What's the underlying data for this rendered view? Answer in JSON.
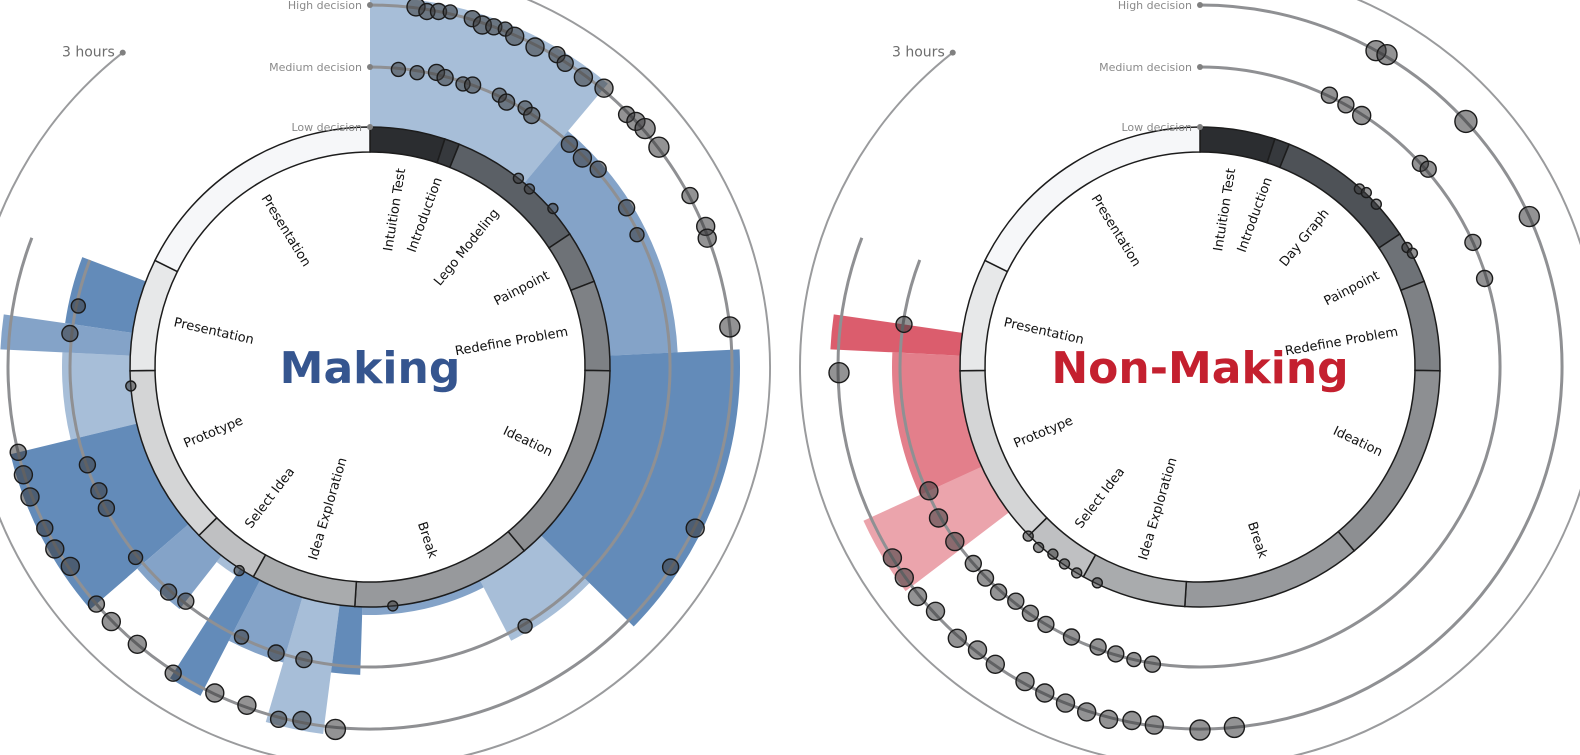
{
  "chart_data": [
    {
      "type": "radial",
      "title": "Making",
      "title_color": "#35558f",
      "accent_color": "#3c6ea8",
      "time_label": "3 hours",
      "levels": [
        "Low decision",
        "Medium decision",
        "High decision"
      ],
      "phases": [
        {
          "label": "Intuition Test",
          "start": 0,
          "end": 10,
          "shade": "#2b2d30"
        },
        {
          "label": "Introduction",
          "start": 10,
          "end": 12,
          "shade": "#36393d"
        },
        {
          "label": "Lego Modeling",
          "start": 12,
          "end": 31,
          "shade": "#5b6066"
        },
        {
          "label": "Painpoint",
          "start": 31,
          "end": 38,
          "shade": "#6e7277"
        },
        {
          "label": "Redefine Problem",
          "start": 38,
          "end": 50,
          "shade": "#7e8185"
        },
        {
          "label": "Ideation",
          "start": 50,
          "end": 77,
          "shade": "#8d8f92"
        },
        {
          "label": "Break",
          "start": 77,
          "end": 101,
          "shade": "#97999c"
        },
        {
          "label": "Idea Exploration",
          "start": 101,
          "end": 115,
          "shade": "#a9abad"
        },
        {
          "label": "Select Idea",
          "start": 115,
          "end": 124,
          "shade": "#bfc0c2"
        },
        {
          "label": "Prototype",
          "start": 124,
          "end": 148,
          "shade": "#d4d5d6"
        },
        {
          "label": "Presentation",
          "start": 148,
          "end": 163,
          "shade": "#e7e8e9"
        },
        {
          "label": "Presentation",
          "start": 163,
          "end": 198,
          "shade": "#f6f7f9"
        }
      ],
      "decision_bands": [
        {
          "start": 0,
          "end": 22,
          "level": 3
        },
        {
          "start": 22,
          "end": 48,
          "level": 2
        },
        {
          "start": 48,
          "end": 74,
          "level": 3
        },
        {
          "start": 74,
          "end": 84,
          "level": 2
        },
        {
          "start": 84,
          "end": 100,
          "level": 1
        },
        {
          "start": 100,
          "end": 103,
          "level": 2
        },
        {
          "start": 103,
          "end": 108,
          "level": 3
        },
        {
          "start": 108,
          "end": 114,
          "level": 2
        },
        {
          "start": 114,
          "end": 117,
          "level": 3
        },
        {
          "start": 117,
          "end": 120,
          "level": 1
        },
        {
          "start": 120,
          "end": 126,
          "level": 2
        },
        {
          "start": 126,
          "end": 141,
          "level": 3
        },
        {
          "start": 141,
          "end": 150,
          "level": 2
        },
        {
          "start": 150,
          "end": 153,
          "level": 3
        },
        {
          "start": 153,
          "end": 160,
          "level": 2
        }
      ],
      "decision_points": [
        {
          "t": 4,
          "level": 3,
          "size": 9
        },
        {
          "t": 5,
          "level": 3,
          "size": 8
        },
        {
          "t": 6,
          "level": 3,
          "size": 8
        },
        {
          "t": 7,
          "level": 3,
          "size": 7
        },
        {
          "t": 9,
          "level": 3,
          "size": 8
        },
        {
          "t": 10,
          "level": 3,
          "size": 9
        },
        {
          "t": 11,
          "level": 3,
          "size": 8
        },
        {
          "t": 12,
          "level": 3,
          "size": 7
        },
        {
          "t": 13,
          "level": 3,
          "size": 9
        },
        {
          "t": 15,
          "level": 3,
          "size": 9
        },
        {
          "t": 17,
          "level": 3,
          "size": 8
        },
        {
          "t": 18,
          "level": 3,
          "size": 8
        },
        {
          "t": 20,
          "level": 3,
          "size": 9
        },
        {
          "t": 22,
          "level": 3,
          "size": 9
        },
        {
          "t": 25,
          "level": 3,
          "size": 8
        },
        {
          "t": 26,
          "level": 3,
          "size": 9
        },
        {
          "t": 27,
          "level": 3,
          "size": 10
        },
        {
          "t": 29,
          "level": 3,
          "size": 10
        },
        {
          "t": 34,
          "level": 3,
          "size": 8
        },
        {
          "t": 37,
          "level": 3,
          "size": 9
        },
        {
          "t": 38,
          "level": 3,
          "size": 9
        },
        {
          "t": 46,
          "level": 3,
          "size": 10
        },
        {
          "t": 64,
          "level": 3,
          "size": 9
        },
        {
          "t": 68,
          "level": 3,
          "size": 8
        },
        {
          "t": 3,
          "level": 2,
          "size": 7
        },
        {
          "t": 5,
          "level": 2,
          "size": 7
        },
        {
          "t": 7,
          "level": 2,
          "size": 8
        },
        {
          "t": 8,
          "level": 2,
          "size": 8
        },
        {
          "t": 10,
          "level": 2,
          "size": 7
        },
        {
          "t": 11,
          "level": 2,
          "size": 8
        },
        {
          "t": 14,
          "level": 2,
          "size": 7
        },
        {
          "t": 15,
          "level": 2,
          "size": 8
        },
        {
          "t": 17,
          "level": 2,
          "size": 7
        },
        {
          "t": 18,
          "level": 2,
          "size": 8
        },
        {
          "t": 23,
          "level": 2,
          "size": 8
        },
        {
          "t": 25,
          "level": 2,
          "size": 9
        },
        {
          "t": 27,
          "level": 2,
          "size": 8
        },
        {
          "t": 32,
          "level": 2,
          "size": 8
        },
        {
          "t": 35,
          "level": 2,
          "size": 7
        },
        {
          "t": 82,
          "level": 2,
          "size": 7
        },
        {
          "t": 106,
          "level": 2,
          "size": 8
        },
        {
          "t": 109,
          "level": 2,
          "size": 8
        },
        {
          "t": 113,
          "level": 2,
          "size": 7
        },
        {
          "t": 120,
          "level": 2,
          "size": 8
        },
        {
          "t": 122,
          "level": 2,
          "size": 8
        },
        {
          "t": 127,
          "level": 2,
          "size": 7
        },
        {
          "t": 133,
          "level": 2,
          "size": 8
        },
        {
          "t": 135,
          "level": 2,
          "size": 8
        },
        {
          "t": 138,
          "level": 2,
          "size": 8
        },
        {
          "t": 152,
          "level": 2,
          "size": 8
        },
        {
          "t": 155,
          "level": 2,
          "size": 7
        },
        {
          "t": 102,
          "level": 3,
          "size": 10
        },
        {
          "t": 105,
          "level": 3,
          "size": 9
        },
        {
          "t": 107,
          "level": 3,
          "size": 8
        },
        {
          "t": 110,
          "level": 3,
          "size": 9
        },
        {
          "t": 113,
          "level": 3,
          "size": 9
        },
        {
          "t": 117,
          "level": 3,
          "size": 8
        },
        {
          "t": 121,
          "level": 3,
          "size": 9
        },
        {
          "t": 124,
          "level": 3,
          "size": 9
        },
        {
          "t": 126,
          "level": 3,
          "size": 8
        },
        {
          "t": 130,
          "level": 3,
          "size": 9
        },
        {
          "t": 132,
          "level": 3,
          "size": 9
        },
        {
          "t": 134,
          "level": 3,
          "size": 8
        },
        {
          "t": 137,
          "level": 3,
          "size": 9
        },
        {
          "t": 139,
          "level": 3,
          "size": 9
        },
        {
          "t": 141,
          "level": 3,
          "size": 8
        },
        {
          "t": 96,
          "level": 1,
          "size": 5
        },
        {
          "t": 117,
          "level": 1,
          "size": 5
        },
        {
          "t": 146,
          "level": 1,
          "size": 5
        },
        {
          "t": 21,
          "level": 1,
          "size": 5
        },
        {
          "t": 23,
          "level": 1,
          "size": 5
        },
        {
          "t": 27,
          "level": 1,
          "size": 5
        }
      ]
    },
    {
      "type": "radial",
      "title": "Non-Making",
      "title_color": "#c4202f",
      "accent_color": "#d23548",
      "time_label": "3 hours",
      "levels": [
        "Low decision",
        "Medium decision",
        "High decision"
      ],
      "phases": [
        {
          "label": "Intuition Test",
          "start": 0,
          "end": 10,
          "shade": "#2b2d30"
        },
        {
          "label": "Introduction",
          "start": 10,
          "end": 12,
          "shade": "#36393d"
        },
        {
          "label": "Day Graph",
          "start": 12,
          "end": 31,
          "shade": "#4e5257"
        },
        {
          "label": "Painpoint",
          "start": 31,
          "end": 38,
          "shade": "#6e7277"
        },
        {
          "label": "Redefine Problem",
          "start": 38,
          "end": 50,
          "shade": "#7e8185"
        },
        {
          "label": "Ideation",
          "start": 50,
          "end": 77,
          "shade": "#8d8f92"
        },
        {
          "label": "Break",
          "start": 77,
          "end": 101,
          "shade": "#97999c"
        },
        {
          "label": "Idea Exploration",
          "start": 101,
          "end": 115,
          "shade": "#a9abad"
        },
        {
          "label": "Select Idea",
          "start": 115,
          "end": 124,
          "shade": "#bfc0c2"
        },
        {
          "label": "Prototype",
          "start": 124,
          "end": 148,
          "shade": "#d4d5d6"
        },
        {
          "label": "Presentation",
          "start": 148,
          "end": 163,
          "shade": "#e7e8e9"
        },
        {
          "label": "Presentation",
          "start": 163,
          "end": 198,
          "shade": "#f6f7f9"
        }
      ],
      "decision_bands": [
        {
          "start": 128,
          "end": 135,
          "level": 3
        },
        {
          "start": 135,
          "end": 150,
          "level": 2
        },
        {
          "start": 150,
          "end": 153,
          "level": 3
        }
      ],
      "decision_points": [
        {
          "t": 14,
          "level": 2,
          "size": 8
        },
        {
          "t": 16,
          "level": 2,
          "size": 8
        },
        {
          "t": 18,
          "level": 2,
          "size": 9
        },
        {
          "t": 26,
          "level": 2,
          "size": 8
        },
        {
          "t": 27,
          "level": 2,
          "size": 8
        },
        {
          "t": 36,
          "level": 2,
          "size": 8
        },
        {
          "t": 40,
          "level": 2,
          "size": 8
        },
        {
          "t": 16,
          "level": 3,
          "size": 10
        },
        {
          "t": 17,
          "level": 3,
          "size": 10
        },
        {
          "t": 26,
          "level": 3,
          "size": 11
        },
        {
          "t": 36,
          "level": 3,
          "size": 10
        },
        {
          "t": 23,
          "level": 1,
          "size": 5
        },
        {
          "t": 24,
          "level": 1,
          "size": 5
        },
        {
          "t": 26,
          "level": 1,
          "size": 5
        },
        {
          "t": 33,
          "level": 1,
          "size": 5
        },
        {
          "t": 34,
          "level": 1,
          "size": 5
        },
        {
          "t": 113,
          "level": 1,
          "size": 5
        },
        {
          "t": 116,
          "level": 1,
          "size": 5
        },
        {
          "t": 118,
          "level": 1,
          "size": 5
        },
        {
          "t": 120,
          "level": 1,
          "size": 5
        },
        {
          "t": 122,
          "level": 1,
          "size": 5
        },
        {
          "t": 124,
          "level": 1,
          "size": 5
        },
        {
          "t": 104,
          "level": 2,
          "size": 8
        },
        {
          "t": 106,
          "level": 2,
          "size": 7
        },
        {
          "t": 108,
          "level": 2,
          "size": 8
        },
        {
          "t": 110,
          "level": 2,
          "size": 8
        },
        {
          "t": 113,
          "level": 2,
          "size": 8
        },
        {
          "t": 116,
          "level": 2,
          "size": 8
        },
        {
          "t": 118,
          "level": 2,
          "size": 8
        },
        {
          "t": 120,
          "level": 2,
          "size": 8
        },
        {
          "t": 122,
          "level": 2,
          "size": 8
        },
        {
          "t": 124,
          "level": 2,
          "size": 8
        },
        {
          "t": 126,
          "level": 2,
          "size": 8
        },
        {
          "t": 129,
          "level": 2,
          "size": 9
        },
        {
          "t": 132,
          "level": 2,
          "size": 9
        },
        {
          "t": 135,
          "level": 2,
          "size": 9
        },
        {
          "t": 153,
          "level": 2,
          "size": 8
        },
        {
          "t": 96,
          "level": 3,
          "size": 10
        },
        {
          "t": 99,
          "level": 3,
          "size": 10
        },
        {
          "t": 103,
          "level": 3,
          "size": 9
        },
        {
          "t": 105,
          "level": 3,
          "size": 9
        },
        {
          "t": 107,
          "level": 3,
          "size": 9
        },
        {
          "t": 109,
          "level": 3,
          "size": 9
        },
        {
          "t": 111,
          "level": 3,
          "size": 9
        },
        {
          "t": 113,
          "level": 3,
          "size": 9
        },
        {
          "t": 115,
          "level": 3,
          "size": 9
        },
        {
          "t": 118,
          "level": 3,
          "size": 9
        },
        {
          "t": 120,
          "level": 3,
          "size": 9
        },
        {
          "t": 122,
          "level": 3,
          "size": 9
        },
        {
          "t": 125,
          "level": 3,
          "size": 9
        },
        {
          "t": 127,
          "level": 3,
          "size": 9
        },
        {
          "t": 129,
          "level": 3,
          "size": 9
        },
        {
          "t": 131,
          "level": 3,
          "size": 9
        },
        {
          "t": 148,
          "level": 3,
          "size": 10
        }
      ]
    }
  ]
}
